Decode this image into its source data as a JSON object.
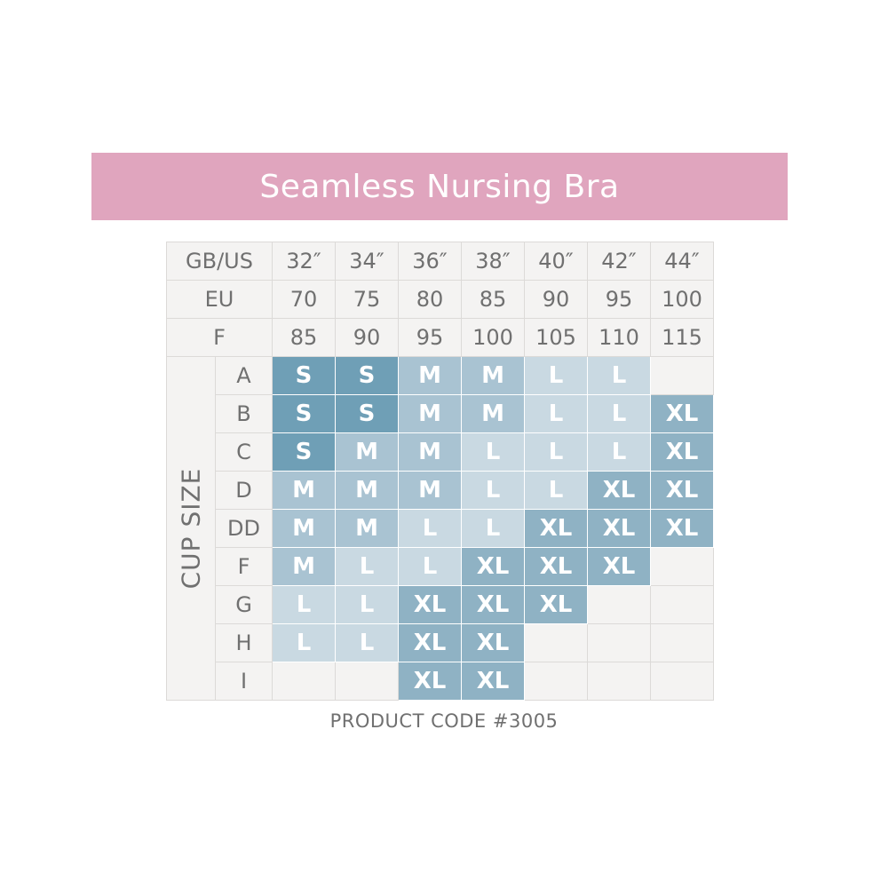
{
  "title": "Seamless Nursing Bra",
  "header_rows": [
    {
      "label": "GB/US",
      "values": [
        "32″",
        "34″",
        "36″",
        "38″",
        "40″",
        "42″",
        "44″"
      ]
    },
    {
      "label": "EU",
      "values": [
        "70",
        "75",
        "80",
        "85",
        "90",
        "95",
        "100"
      ]
    },
    {
      "label": "F",
      "values": [
        "85",
        "90",
        "95",
        "100",
        "105",
        "110",
        "115"
      ]
    }
  ],
  "cup_size_label": "CUP SIZE",
  "rows": [
    {
      "cup": "A",
      "sizes": [
        "S",
        "S",
        "M",
        "M",
        "L",
        "L",
        ""
      ]
    },
    {
      "cup": "B",
      "sizes": [
        "S",
        "S",
        "M",
        "M",
        "L",
        "L",
        "XL"
      ]
    },
    {
      "cup": "C",
      "sizes": [
        "S",
        "M",
        "M",
        "L",
        "L",
        "L",
        "XL"
      ]
    },
    {
      "cup": "D",
      "sizes": [
        "M",
        "M",
        "M",
        "L",
        "L",
        "XL",
        "XL"
      ]
    },
    {
      "cup": "DD",
      "sizes": [
        "M",
        "M",
        "L",
        "L",
        "XL",
        "XL",
        "XL"
      ]
    },
    {
      "cup": "F",
      "sizes": [
        "M",
        "L",
        "L",
        "XL",
        "XL",
        "XL",
        ""
      ]
    },
    {
      "cup": "G",
      "sizes": [
        "L",
        "L",
        "XL",
        "XL",
        "XL",
        "",
        ""
      ]
    },
    {
      "cup": "H",
      "sizes": [
        "L",
        "L",
        "XL",
        "XL",
        "",
        "",
        ""
      ]
    },
    {
      "cup": "I",
      "sizes": [
        "",
        "",
        "XL",
        "XL",
        "",
        "",
        ""
      ]
    }
  ],
  "size_colors": {
    "S": "#6f9fb6",
    "M": "#a9c3d2",
    "L": "#c9d9e2",
    "XL": "#8fb2c4",
    "": "#f4f3f2"
  },
  "product_code": "PRODUCT CODE #3005"
}
